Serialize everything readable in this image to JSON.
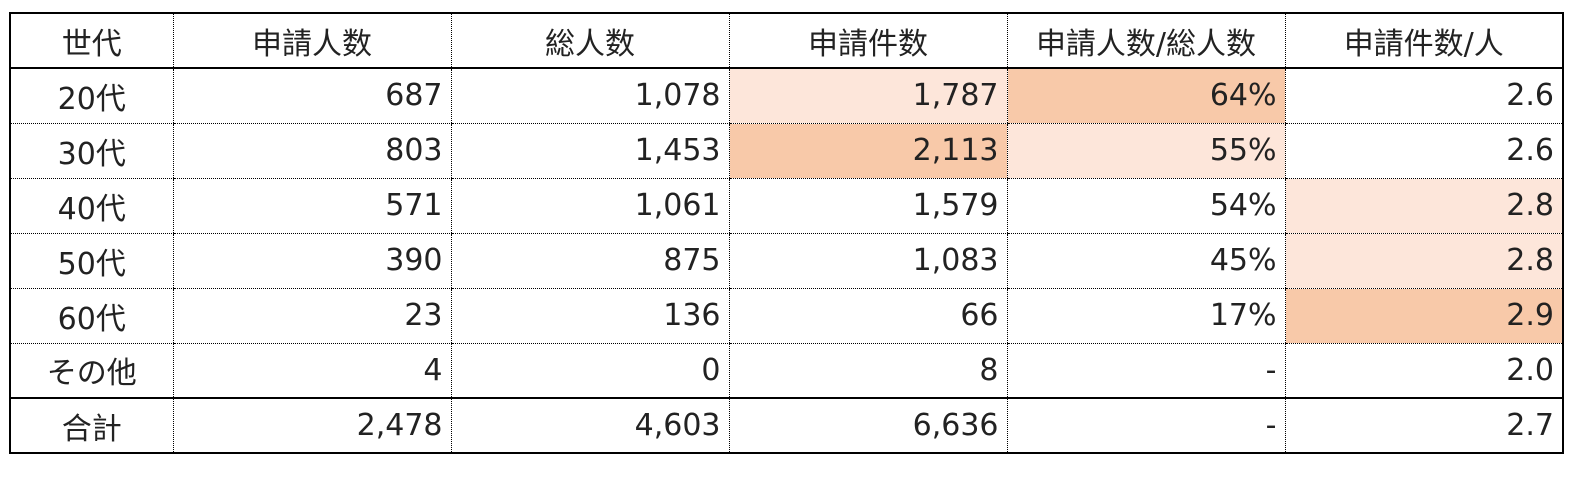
{
  "chart_data": {
    "type": "table",
    "columns": [
      "世代",
      "申請人数",
      "総人数",
      "申請件数",
      "申請人数/総人数",
      "申請件数/人"
    ],
    "rows": [
      {
        "label": "20代",
        "cells": [
          "687",
          "1,078",
          "1,787",
          "64%",
          "2.6"
        ],
        "highlight": [
          "",
          "",
          "light",
          "strong",
          ""
        ]
      },
      {
        "label": "30代",
        "cells": [
          "803",
          "1,453",
          "2,113",
          "55%",
          "2.6"
        ],
        "highlight": [
          "",
          "",
          "strong",
          "light",
          ""
        ]
      },
      {
        "label": "40代",
        "cells": [
          "571",
          "1,061",
          "1,579",
          "54%",
          "2.8"
        ],
        "highlight": [
          "",
          "",
          "",
          "",
          "light"
        ]
      },
      {
        "label": "50代",
        "cells": [
          "390",
          "875",
          "1,083",
          "45%",
          "2.8"
        ],
        "highlight": [
          "",
          "",
          "",
          "",
          "light"
        ]
      },
      {
        "label": "60代",
        "cells": [
          "23",
          "136",
          "66",
          "17%",
          "2.9"
        ],
        "highlight": [
          "",
          "",
          "",
          "",
          "strong"
        ]
      },
      {
        "label": "その他",
        "cells": [
          "4",
          "0",
          "8",
          "-",
          "2.0"
        ],
        "highlight": [
          "",
          "",
          "",
          "",
          ""
        ]
      }
    ],
    "total": {
      "label": "合計",
      "cells": [
        "2,478",
        "4,603",
        "6,636",
        "-",
        "2.7"
      ]
    },
    "highlight_colors": {
      "light": "#fde6da",
      "strong": "#f8c9a9"
    }
  }
}
